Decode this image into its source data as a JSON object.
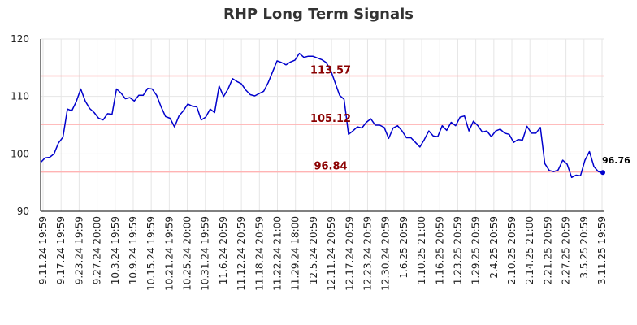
{
  "chart_data": {
    "type": "line",
    "title": "RHP Long Term Signals",
    "xlabel": "",
    "ylabel": "",
    "ylim": [
      90,
      120
    ],
    "y_ticks": [
      "90",
      "100",
      "110",
      "120"
    ],
    "x_ticks": [
      "9.11.24 19:59",
      "9.17.24 19:59",
      "9.23.24 19:59",
      "9.27.24 20:00",
      "10.3.24 19:59",
      "10.9.24 19:59",
      "10.15.24 19:59",
      "10.21.24 19:59",
      "10.25.24 20:00",
      "10.31.24 19:59",
      "11.6.24 20:59",
      "11.12.24 20:59",
      "11.18.24 20:59",
      "11.22.24 21:00",
      "11.29.24 18:00",
      "12.5.24 20:59",
      "12.11.24 20:59",
      "12.17.24 20:59",
      "12.23.24 20:59",
      "12.30.24 20:59",
      "1.6.25 20:59",
      "1.10.25 21:00",
      "1.16.25 20:59",
      "1.23.25 20:59",
      "1.29.25 20:59",
      "2.4.25 20:59",
      "2.10.25 20:59",
      "2.14.25 21:00",
      "2.21.25 20:59",
      "2.27.25 20:59",
      "3.5.25 20:59",
      "3.11.25 19:59"
    ],
    "grid": true,
    "reference_lines": [
      {
        "value": 113.57,
        "label": "113.57",
        "color": "#ffb3b3"
      },
      {
        "value": 105.12,
        "label": "105.12",
        "color": "#ffb3b3"
      },
      {
        "value": 96.84,
        "label": "96.84",
        "color": "#ffb3b3"
      }
    ],
    "last_value_label": "96.76",
    "line_color": "#0000cc",
    "series": [
      {
        "values": [
          98.5,
          99.3,
          99.4,
          100,
          101.9,
          102.9,
          107.8,
          107.5,
          109.1,
          111.3,
          109.2,
          107.9,
          107.2,
          106.2,
          105.9,
          107,
          106.9,
          111.3,
          110.6,
          109.6,
          109.8,
          109.2,
          110.2,
          110.2,
          111.4,
          111.3,
          110.2,
          108.2,
          106.5,
          106.2,
          104.7,
          106.6,
          107.5,
          108.7,
          108.3,
          108.2,
          105.9,
          106.4,
          107.8,
          107.2,
          111.8,
          110,
          111.3,
          113.1,
          112.6,
          112.2,
          111.1,
          110.3,
          110.1,
          110.5,
          110.9,
          112.4,
          114.3,
          116.2,
          115.9,
          115.5,
          116,
          116.3,
          117.5,
          116.8,
          117,
          117,
          116.7,
          116.4,
          115.9,
          114.6,
          112.4,
          110.2,
          109.5,
          103.4,
          104,
          104.7,
          104.5,
          105.5,
          106.1,
          105,
          105,
          104.6,
          102.7,
          104.5,
          104.9,
          104,
          102.8,
          102.8,
          102,
          101.2,
          102.5,
          104,
          103.1,
          103,
          104.9,
          104.1,
          105.5,
          104.9,
          106.4,
          106.6,
          104,
          105.7,
          104.9,
          103.8,
          104,
          103,
          104,
          104.3,
          103.6,
          103.4,
          102,
          102.5,
          102.4,
          104.8,
          103.6,
          103.6,
          104.6,
          98.3,
          97.1,
          96.9,
          97.2,
          98.9,
          98.2,
          95.9,
          96.3,
          96.2,
          98.9,
          100.4,
          97.8,
          96.9,
          96.76
        ]
      }
    ]
  }
}
